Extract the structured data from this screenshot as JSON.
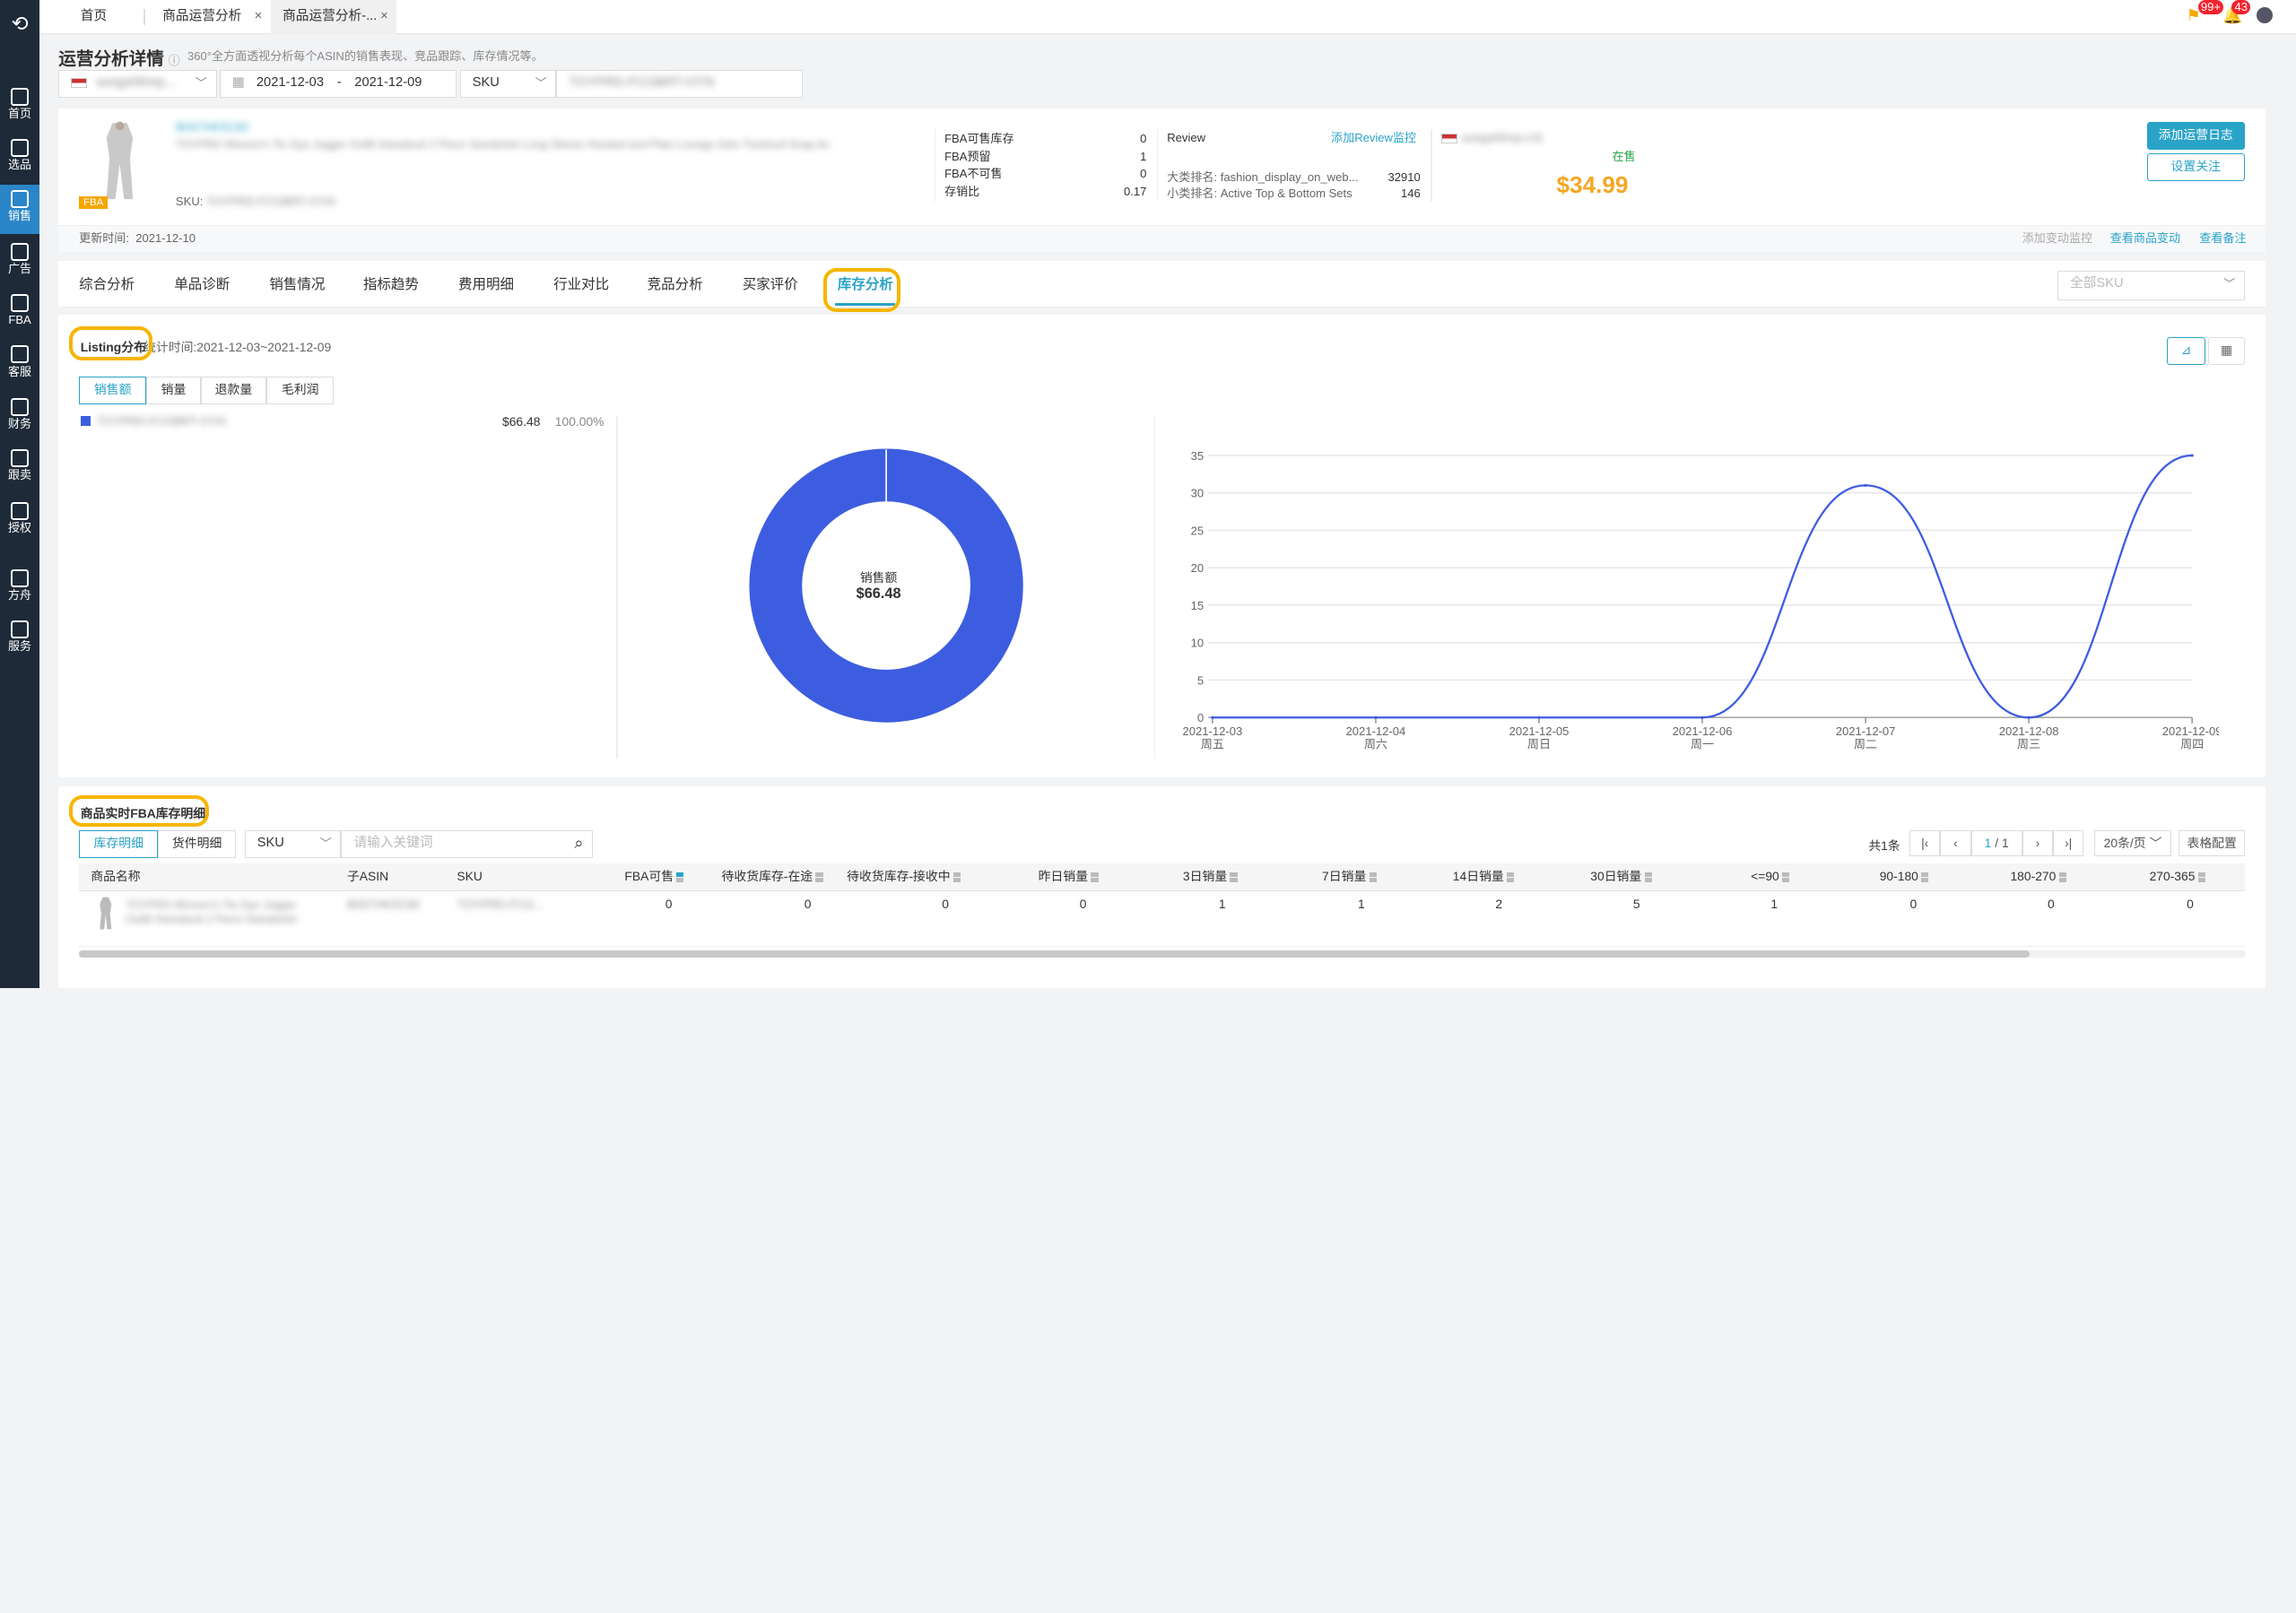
{
  "tabs": [
    {
      "label": "首页"
    },
    {
      "label": "商品运营分析"
    },
    {
      "label": "商品运营分析-..."
    }
  ],
  "top_badges": {
    "flag": "99+",
    "bell": "43"
  },
  "sidebar": {
    "items": [
      {
        "label": "首页",
        "icon": "home-icon"
      },
      {
        "label": "选品",
        "icon": "search-icon"
      },
      {
        "label": "销售",
        "icon": "chart-icon"
      },
      {
        "label": "广告",
        "icon": "ad-icon"
      },
      {
        "label": "FBA",
        "icon": "box-icon"
      },
      {
        "label": "客服",
        "icon": "service-icon"
      },
      {
        "label": "财务",
        "icon": "money-icon"
      },
      {
        "label": "跟卖",
        "icon": "follow-icon"
      },
      {
        "label": "授权",
        "icon": "shield-icon"
      },
      {
        "label": "方舟",
        "icon": "ark-icon"
      },
      {
        "label": "服务",
        "icon": "service-desk-icon"
      }
    ]
  },
  "header": {
    "title": "运营分析详情",
    "desc": "360°全方面透视分析每个ASIN的销售表现、竞品跟踪、库存情况等。"
  },
  "filters": {
    "shop": "songshfmrp...",
    "date_from": "2021-12-03",
    "date_sep": "-",
    "date_to": "2021-12-09",
    "type": "SKU",
    "sku": "TOYPRD-FCGBRT-OYN"
  },
  "product": {
    "badge": "FBA",
    "asin": "B0S7HK5C60",
    "name": "TOYPRD Women's Tie Dye Jogger Outfit Sweatsuit 2 Piece Sweatshirt Long Sleeve Hooded and Plain Lounge Sets Tracksuit Snap Ac",
    "sku_label": "SKU:",
    "sku": "TOYPRD-FCGBRT-OYN",
    "stats": [
      {
        "label": "FBA可售库存",
        "value": "0"
      },
      {
        "label": "FBA预留",
        "value": "1"
      },
      {
        "label": "FBA不可售",
        "value": "0"
      },
      {
        "label": "存销比",
        "value": "0.17"
      }
    ],
    "review_label": "Review",
    "review_link": "添加Review监控",
    "rank_big": {
      "label": "大类排名:",
      "cat": "fashion_display_on_web...",
      "value": "32910"
    },
    "rank_small": {
      "label": "小类排名:",
      "cat": "Active Top & Bottom Sets",
      "value": "146"
    },
    "store": "songshfmrp-US",
    "status": "在售",
    "price": "$34.99",
    "btn_log": "添加运营日志",
    "btn_follow": "设置关注",
    "updated_label": "更新时间:",
    "updated": "2021-12-10",
    "links": {
      "monitor": "添加变动监控",
      "changes": "查看商品变动",
      "notes": "查看备注"
    }
  },
  "func_tabs": [
    "综合分析",
    "单品诊断",
    "销售情况",
    "指标趋势",
    "费用明细",
    "行业对比",
    "竞品分析",
    "买家评价",
    "库存分析"
  ],
  "sku_filter": "全部SKU",
  "listing": {
    "title": "Listing分布",
    "period_label": "统计时间:",
    "period": "2021-12-03~2021-12-09",
    "subtabs": [
      "销售额",
      "销量",
      "退款量",
      "毛利润"
    ],
    "legend": [
      {
        "name": "TOYPRD-FCGBRT-OYN",
        "value": "$66.48",
        "pct": "100.00%",
        "color": "#3d5de0"
      }
    ]
  },
  "donut": {
    "label": "销售额",
    "value": "$66.48",
    "color": "#3d5de0"
  },
  "chart_data": {
    "type": "line",
    "x": [
      "2021-12-03",
      "2021-12-04",
      "2021-12-05",
      "2021-12-06",
      "2021-12-07",
      "2021-12-08",
      "2021-12-09"
    ],
    "x2": [
      "周五",
      "周六",
      "周日",
      "周一",
      "周二",
      "周三",
      "周四"
    ],
    "series": [
      {
        "values": [
          0,
          0,
          0,
          0,
          31,
          0,
          35
        ],
        "color": "#3d5de0"
      }
    ],
    "yticks": [
      0,
      5,
      10,
      15,
      20,
      25,
      30,
      35
    ],
    "ylim": [
      0,
      35
    ],
    "grid": true
  },
  "inventory": {
    "title": "商品实时FBA库存明细",
    "subtabs": [
      "库存明细",
      "货件明细"
    ],
    "type": "SKU",
    "placeholder": "请输入关键词",
    "total": "共1条",
    "page": "1",
    "pages": "/ 1",
    "per_page": "20条/页",
    "config": "表格配置",
    "columns": [
      "商品名称",
      "子ASIN",
      "SKU",
      "FBA可售",
      "待收货库存-在途",
      "待收货库存-接收中",
      "昨日销量",
      "3日销量",
      "7日销量",
      "14日销量",
      "30日销量",
      "<=90",
      "90-180",
      "180-270",
      "270-365"
    ],
    "row": {
      "name": "TOYPRD Women's Tie Dye Jogger Outfit Sweatsuit 2 Piece Sweatshirt",
      "asin": "B0S7HK5C60",
      "sku": "TOYPRD-FCG...",
      "values": [
        "0",
        "0",
        "0",
        "0",
        "1",
        "1",
        "2",
        "5",
        "1",
        "0",
        "0",
        "0"
      ]
    }
  }
}
